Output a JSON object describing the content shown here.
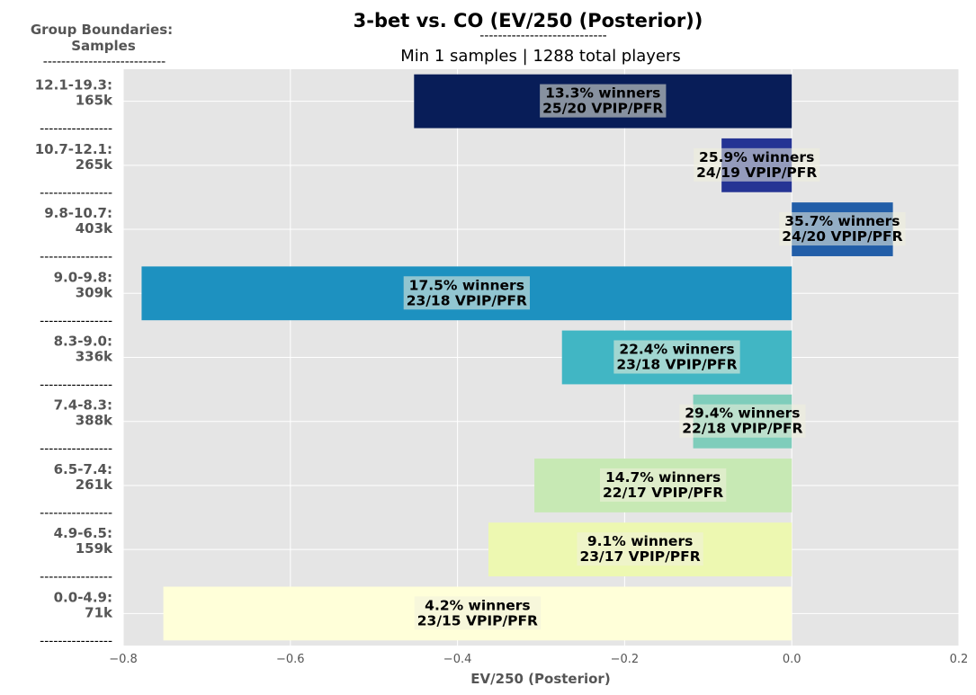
{
  "chart_data": {
    "type": "bar",
    "orientation": "horizontal",
    "title": "3-bet vs. CO (EV/250 (Posterior))",
    "title_rule": "----------------------------",
    "subtitle": "Min 1 samples | 1288 total players",
    "group_header": [
      "Group Boundaries:",
      "Samples",
      "---------------------------"
    ],
    "separator": "----------------",
    "xlabel": "EV/250 (Posterior)",
    "xlim": [
      -0.8,
      0.2
    ],
    "xticks": [
      {
        "value": -0.8,
        "label": "−0.8"
      },
      {
        "value": -0.6,
        "label": "−0.6"
      },
      {
        "value": -0.4,
        "label": "−0.4"
      },
      {
        "value": -0.2,
        "label": "−0.2"
      },
      {
        "value": 0.0,
        "label": "0.0"
      },
      {
        "value": 0.2,
        "label": "0.2"
      }
    ],
    "grid": true,
    "bars": [
      {
        "group": "12.1-19.3:",
        "samples": "165k",
        "value": -0.452,
        "color": "#081d58",
        "winners": "13.3% winners",
        "vpip": "25/20 VPIP/PFR"
      },
      {
        "group": "10.7-12.1:",
        "samples": "265k",
        "value": -0.084,
        "color": "#253494",
        "winners": "25.9% winners",
        "vpip": "24/19 VPIP/PFR"
      },
      {
        "group": "9.8-10.7:",
        "samples": "403k",
        "value": 0.121,
        "color": "#225ea8",
        "winners": "35.7% winners",
        "vpip": "24/20 VPIP/PFR"
      },
      {
        "group": "9.0-9.8:",
        "samples": "309k",
        "value": -0.778,
        "color": "#1d91c0",
        "winners": "17.5% winners",
        "vpip": "23/18 VPIP/PFR"
      },
      {
        "group": "8.3-9.0:",
        "samples": "336k",
        "value": -0.275,
        "color": "#41b6c4",
        "winners": "22.4% winners",
        "vpip": "23/18 VPIP/PFR"
      },
      {
        "group": "7.4-8.3:",
        "samples": "388k",
        "value": -0.118,
        "color": "#7fcdbb",
        "winners": "29.4% winners",
        "vpip": "22/18 VPIP/PFR"
      },
      {
        "group": "6.5-7.4:",
        "samples": "261k",
        "value": -0.308,
        "color": "#c7e9b4",
        "winners": "14.7% winners",
        "vpip": "22/17 VPIP/PFR"
      },
      {
        "group": "4.9-6.5:",
        "samples": "159k",
        "value": -0.363,
        "color": "#edf8b1",
        "winners": "9.1% winners",
        "vpip": "23/17 VPIP/PFR"
      },
      {
        "group": "0.0-4.9:",
        "samples": "71k",
        "value": -0.752,
        "color": "#ffffd9",
        "winners": "4.2% winners",
        "vpip": "23/15 VPIP/PFR"
      }
    ],
    "colors": {
      "plot_background": "#e5e5e5",
      "grid": "#ffffff",
      "label_box": "#f0f0dc"
    }
  }
}
